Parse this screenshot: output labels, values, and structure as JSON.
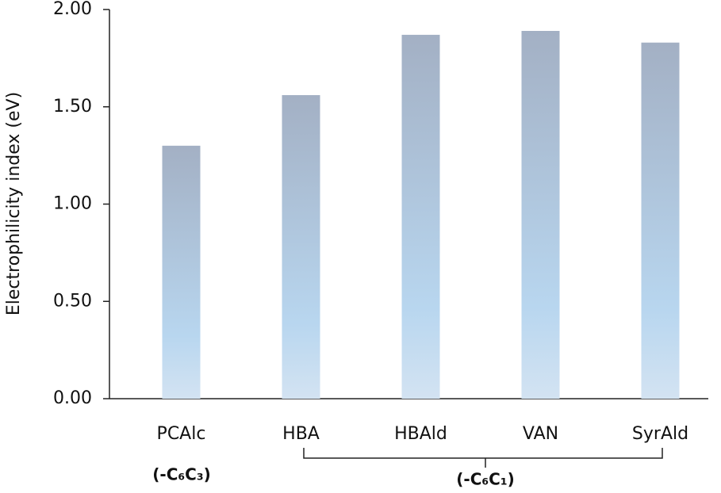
{
  "chart_data": {
    "type": "bar",
    "y_label": "Electrophilicity index (eV)",
    "categories": [
      "PCAlc",
      "HBA",
      "HBAld",
      "VAN",
      "SyrAld"
    ],
    "values": [
      1.3,
      1.56,
      1.87,
      1.89,
      1.83
    ],
    "gradient": [
      "#a3b0c4",
      "#b8d6ef",
      "#d3e3f2"
    ],
    "ylim": [
      0,
      2
    ],
    "yticks": [
      {
        "value": 0,
        "label": "0.00"
      },
      {
        "value": 0.5,
        "label": "0.50"
      },
      {
        "value": 1,
        "label": "1.00"
      },
      {
        "value": 1.5,
        "label": "1.50"
      },
      {
        "value": 2,
        "label": "2.00"
      }
    ],
    "grid": false,
    "groups": [
      "(-C₆C₃)",
      "(-C₆C₁)"
    ]
  }
}
